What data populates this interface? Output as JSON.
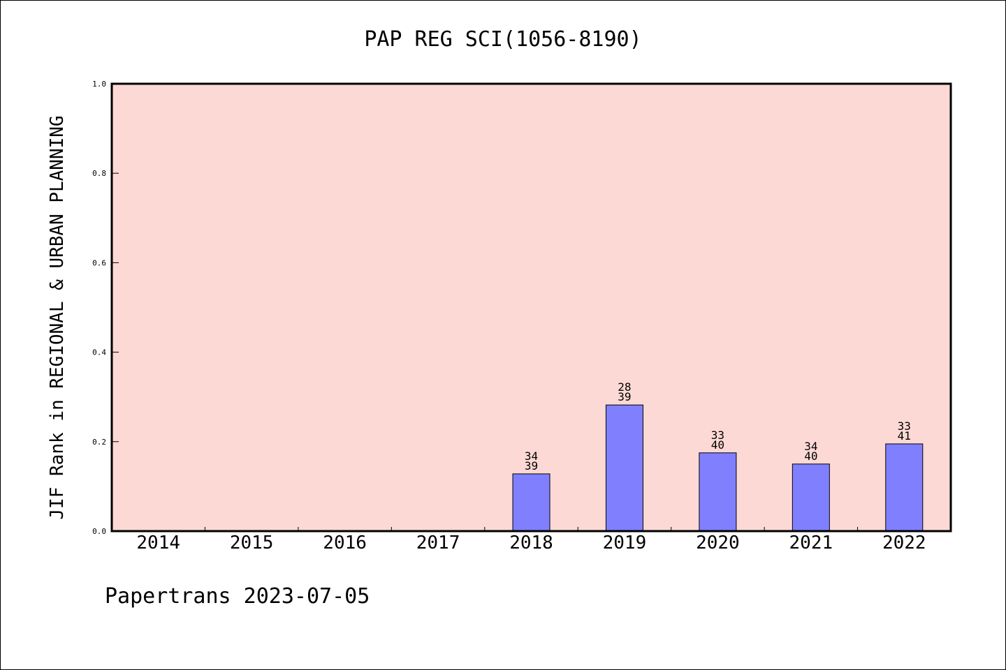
{
  "chart_data": {
    "type": "bar",
    "title": "PAP REG SCI(1056-8190)",
    "ylabel": "JIF Rank in REGIONAL & URBAN PLANNING",
    "xlabel": "",
    "categories": [
      "2014",
      "2015",
      "2016",
      "2017",
      "2018",
      "2019",
      "2020",
      "2021",
      "2022"
    ],
    "values": [
      null,
      null,
      null,
      null,
      0.128,
      0.282,
      0.175,
      0.15,
      0.195
    ],
    "bar_labels": [
      null,
      null,
      null,
      null,
      {
        "rank": "34",
        "total": "39"
      },
      {
        "rank": "28",
        "total": "39"
      },
      {
        "rank": "33",
        "total": "40"
      },
      {
        "rank": "34",
        "total": "40"
      },
      {
        "rank": "33",
        "total": "41"
      }
    ],
    "ylim": [
      0,
      1.0
    ],
    "yticks": [
      "0.0",
      "0.2",
      "0.4",
      "0.6",
      "0.8",
      "1.0"
    ],
    "grid": false,
    "colors": {
      "plot_background": "#fdd9d5",
      "bar_fill": "#8080ff",
      "bar_stroke": "#000000"
    }
  },
  "footer": {
    "text": "Papertrans 2023-07-05"
  }
}
